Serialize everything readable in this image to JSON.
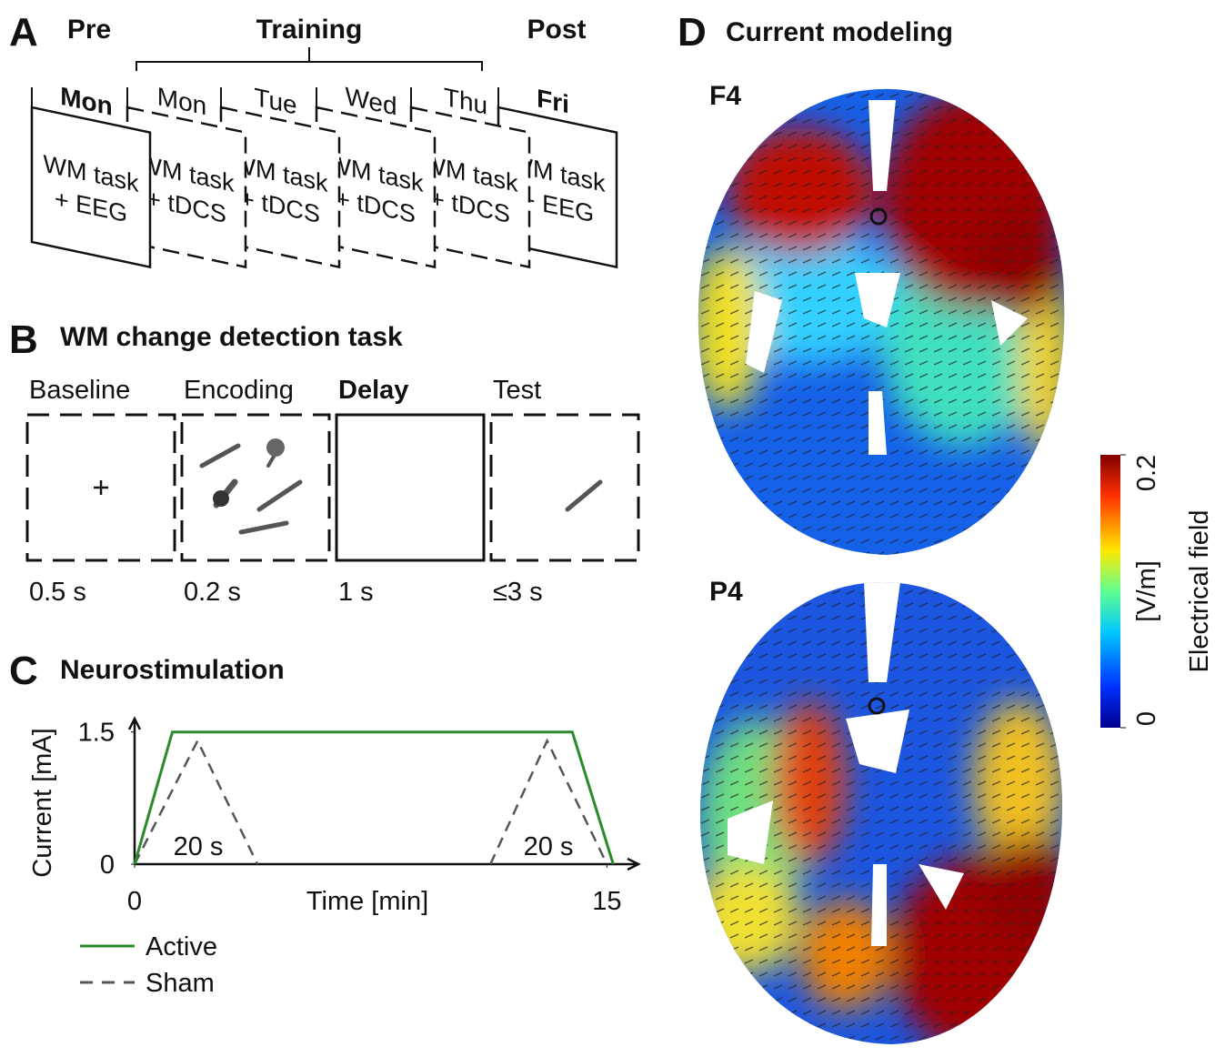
{
  "panel_a": {
    "label": "A",
    "phases": [
      "Pre",
      "Training",
      "Post"
    ],
    "cards": [
      {
        "day": "Mon",
        "lines": [
          "WM task",
          "+ EEG"
        ],
        "solid": true
      },
      {
        "day": "Mon",
        "lines": [
          "WM task",
          "+ tDCS"
        ],
        "solid": false
      },
      {
        "day": "Tue",
        "lines": [
          "WM task",
          "+ tDCS"
        ],
        "solid": false
      },
      {
        "day": "Wed",
        "lines": [
          "WM task",
          "+ tDCS"
        ],
        "solid": false
      },
      {
        "day": "Thu",
        "lines": [
          "WM task",
          "+ tDCS"
        ],
        "solid": false
      },
      {
        "day": "Fri",
        "lines": [
          "WM task",
          "+ EEG"
        ],
        "solid": true
      }
    ]
  },
  "panel_b": {
    "label": "B",
    "title": "WM change detection task",
    "stages": [
      {
        "name": "Baseline",
        "duration": "0.5 s",
        "solid": false
      },
      {
        "name": "Encoding",
        "duration": "0.2 s",
        "solid": false
      },
      {
        "name": "Delay",
        "duration": "1 s",
        "solid": true
      },
      {
        "name": "Test",
        "duration": "≤3 s",
        "solid": false
      }
    ]
  },
  "chart_data": {
    "type": "line",
    "label": "C",
    "title": "Neurostimulation",
    "xlabel": "Time [min]",
    "ylabel": "Current [mA]",
    "xlim": [
      0,
      16
    ],
    "ylim": [
      0,
      1.6
    ],
    "xticks": [
      0,
      15
    ],
    "yticks": [
      0,
      1.5
    ],
    "annotations": [
      "20 s",
      "20 s"
    ],
    "series": [
      {
        "name": "Active",
        "color": "#2a8a2a",
        "style": "solid",
        "x": [
          0,
          1.2,
          13.9,
          15.2
        ],
        "values": [
          0,
          1.5,
          1.5,
          0
        ]
      },
      {
        "name": "Sham",
        "color": "#555555",
        "style": "dashed",
        "x": [
          0,
          2.0,
          3.9,
          null,
          11.3,
          13.1,
          15.0
        ],
        "values": [
          0,
          1.4,
          0,
          null,
          0,
          1.4,
          0
        ]
      }
    ]
  },
  "panel_d": {
    "label": "D",
    "title": "Current modeling",
    "maps": [
      "F4",
      "P4"
    ],
    "colorbar": {
      "label": "Electrical field",
      "unit": "[V/m]",
      "lim": [
        0,
        0.2
      ],
      "ticks": [
        0,
        0.2
      ]
    }
  }
}
